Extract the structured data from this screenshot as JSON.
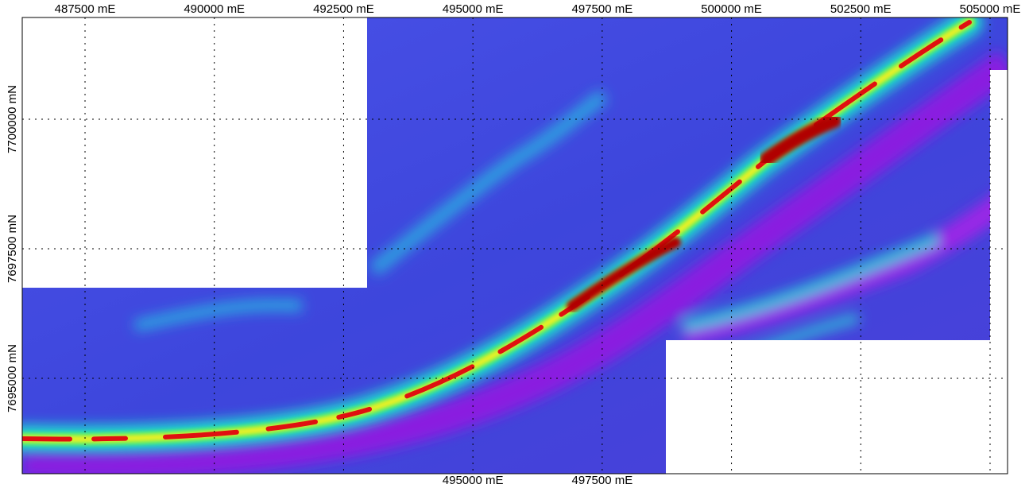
{
  "map": {
    "type": "map",
    "xlim": [
      486286,
      505338
    ],
    "ylim": [
      7693160,
      7701963
    ],
    "xticks": [
      {
        "value": 487500,
        "label": "487500 mE"
      },
      {
        "value": 490000,
        "label": "490000 mE"
      },
      {
        "value": 492500,
        "label": "492500 mE"
      },
      {
        "value": 495000,
        "label": "495000 mE"
      },
      {
        "value": 497500,
        "label": "497500 mE"
      },
      {
        "value": 500000,
        "label": "500000 mE"
      },
      {
        "value": 502500,
        "label": "502500 mE"
      },
      {
        "value": 505000,
        "label": "505000 mE"
      }
    ],
    "yticks": [
      {
        "value": 7695000,
        "label": "7695000 mN"
      },
      {
        "value": 7697500,
        "label": "7697500 mN"
      },
      {
        "value": 7700000,
        "label": "7700000 mN"
      }
    ],
    "bottom_xticks": [
      3,
      4
    ],
    "grid": true
  }
}
